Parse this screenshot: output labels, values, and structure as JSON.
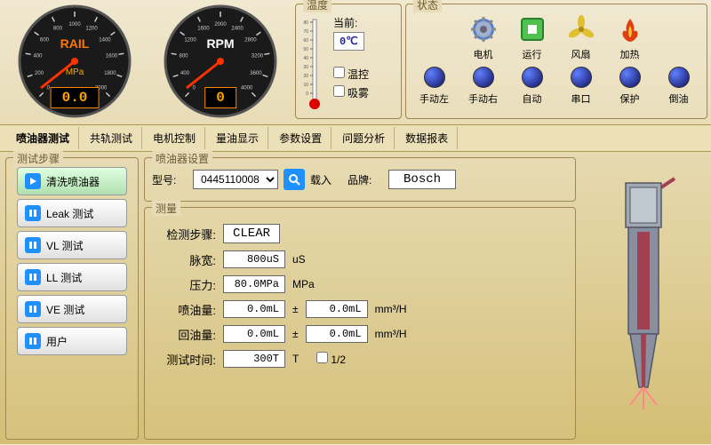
{
  "gauges": {
    "rail": {
      "title": "RAIL",
      "unit": "MPa",
      "value": "0.0",
      "ticks": [
        "0",
        "200",
        "400",
        "600",
        "800",
        "1000",
        "1200",
        "1400",
        "1600",
        "1800",
        "2000"
      ],
      "title_color": "#ff7700",
      "unit_color": "#ffa500"
    },
    "rpm": {
      "title": "RPM",
      "unit": "",
      "value": "0",
      "ticks": [
        "0",
        "400",
        "800",
        "1200",
        "1600",
        "2000",
        "2400",
        "2800",
        "3200",
        "3600",
        "4000"
      ],
      "title_color": "#ffffff",
      "unit_color": "#ffa500"
    }
  },
  "temp": {
    "title": "温度",
    "scale": [
      "80",
      "70",
      "60",
      "50",
      "40",
      "30",
      "20",
      "10",
      "0"
    ],
    "current_label": "当前:",
    "current_value": "0℃",
    "checks": {
      "tempctl": "温控",
      "mist": "吸雾"
    }
  },
  "status": {
    "title": "状态",
    "row1": [
      {
        "icon": "gear",
        "label": "电机"
      },
      {
        "icon": "run",
        "label": "运行"
      },
      {
        "icon": "fan",
        "label": "风扇"
      },
      {
        "icon": "fire",
        "label": "加热"
      }
    ],
    "row2": [
      {
        "label": "手动左"
      },
      {
        "label": "手动右"
      },
      {
        "label": "自动"
      },
      {
        "label": "串口"
      },
      {
        "label": "保护"
      },
      {
        "label": "倒油"
      }
    ]
  },
  "tabs": [
    "喷油器测试",
    "共轨测试",
    "电机控制",
    "量油显示",
    "参数设置",
    "问题分析",
    "数据报表"
  ],
  "active_tab": 0,
  "steps": {
    "title": "测试步骤",
    "items": [
      {
        "label": "清洗喷油器",
        "state": "play"
      },
      {
        "label": "Leak 测试",
        "state": "pause"
      },
      {
        "label": "VL 测试",
        "state": "pause"
      },
      {
        "label": "LL 测试",
        "state": "pause"
      },
      {
        "label": "VE 测试",
        "state": "pause"
      },
      {
        "label": "用户",
        "state": "pause"
      }
    ]
  },
  "injector_cfg": {
    "title": "喷油器设置",
    "model_label": "型号:",
    "model_value": "0445110008",
    "load_label": "载入",
    "brand_label": "品牌:",
    "brand_value": "Bosch"
  },
  "measure": {
    "title": "测量",
    "step_label": "检测步骤:",
    "step_value": "CLEAR",
    "pulse_label": "脉宽:",
    "pulse_value": "800uS",
    "pulse_unit": "uS",
    "pressure_label": "压力:",
    "pressure_value": "80.0MPa",
    "pressure_unit": "MPa",
    "inject_label": "喷油量:",
    "inject_v1": "0.0mL",
    "inject_v2": "0.0mL",
    "inject_unit": "mm³/H",
    "return_label": "回油量:",
    "return_v1": "0.0mL",
    "return_v2": "0.0mL",
    "return_unit": "mm³/H",
    "time_label": "测试时间:",
    "time_value": "300T",
    "time_unit": "T",
    "half_label": "1/2",
    "pm": "±"
  },
  "colors": {
    "bg_top": "#f0e8d0",
    "bg_bottom": "#d4be74",
    "gauge_face": "#1a1a1a"
  }
}
